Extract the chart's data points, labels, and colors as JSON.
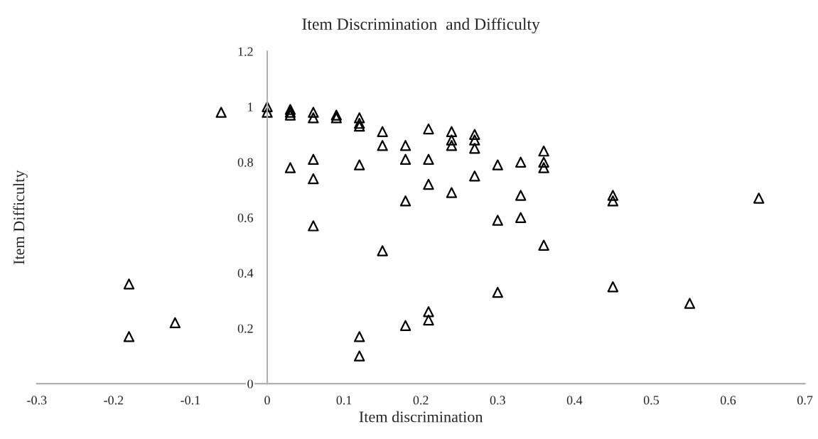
{
  "chart_data": {
    "type": "scatter",
    "title": "Item Discrimination  and Difficulty",
    "xlabel": "Item discrimination",
    "ylabel": "Item Difficulty",
    "xlim": [
      -0.3,
      0.7
    ],
    "xticks": [
      -0.3,
      -0.2,
      -0.1,
      0,
      0.1,
      0.2,
      0.3,
      0.4,
      0.5,
      0.6,
      0.7
    ],
    "ylim": [
      0,
      1.2
    ],
    "yticks": [
      0,
      0.2,
      0.4,
      0.6,
      0.8,
      1,
      1.2
    ],
    "grid": false,
    "marker": "triangle",
    "series": [
      {
        "color": "#000000",
        "x": [
          -0.06,
          -0.18,
          -0.18,
          -0.12,
          0,
          0,
          0.03,
          0.03,
          0.03,
          0.03,
          0.06,
          0.06,
          0.06,
          0.06,
          0.06,
          0.09,
          0.09,
          0.12,
          0.12,
          0.12,
          0.12,
          0.12,
          0.12,
          0.15,
          0.15,
          0.15,
          0.18,
          0.18,
          0.18,
          0.18,
          0.21,
          0.21,
          0.21,
          0.21,
          0.21,
          0.24,
          0.24,
          0.24,
          0.24,
          0.27,
          0.27,
          0.27,
          0.27,
          0.3,
          0.3,
          0.3,
          0.33,
          0.33,
          0.33,
          0.36,
          0.36,
          0.36,
          0.36,
          0.45,
          0.45,
          0.45,
          0.55,
          0.64
        ],
        "values": [
          0.98,
          0.36,
          0.17,
          0.22,
          1.0,
          0.98,
          0.99,
          0.98,
          0.97,
          0.78,
          0.98,
          0.96,
          0.81,
          0.74,
          0.57,
          0.97,
          0.96,
          0.96,
          0.94,
          0.93,
          0.79,
          0.17,
          0.1,
          0.91,
          0.86,
          0.48,
          0.86,
          0.81,
          0.66,
          0.21,
          0.92,
          0.81,
          0.72,
          0.26,
          0.23,
          0.91,
          0.88,
          0.86,
          0.69,
          0.9,
          0.88,
          0.85,
          0.75,
          0.79,
          0.59,
          0.33,
          0.8,
          0.68,
          0.6,
          0.84,
          0.8,
          0.78,
          0.5,
          0.68,
          0.66,
          0.35,
          0.29,
          0.67
        ]
      }
    ]
  }
}
